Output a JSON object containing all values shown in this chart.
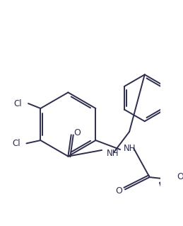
{
  "background_color": "#ffffff",
  "line_color": "#2d2d4e",
  "line_width": 1.4,
  "font_size": 8.5,
  "figsize": [
    2.59,
    3.19
  ],
  "dpi": 100,
  "xlim": [
    0,
    259
  ],
  "ylim": [
    0,
    319
  ]
}
